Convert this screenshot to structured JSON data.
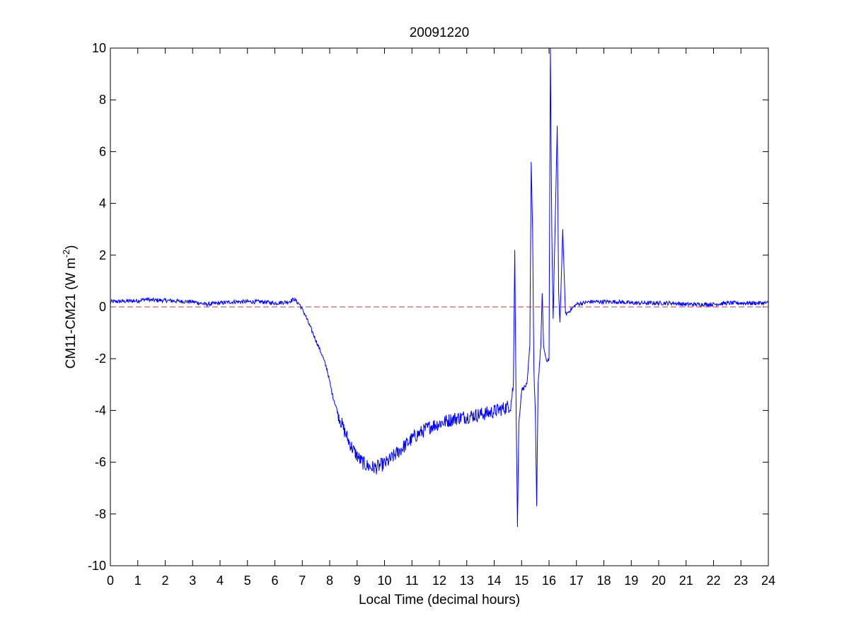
{
  "chart_data": {
    "type": "line",
    "title": "20091220",
    "xlabel": "Local Time (decimal hours)",
    "ylabel": {
      "text": "CM11-CM21 (W m",
      "superscript": "-2",
      "close": ")"
    },
    "xlim": [
      0,
      24
    ],
    "ylim": [
      -10,
      10
    ],
    "xticks": [
      "0",
      "1",
      "2",
      "3",
      "4",
      "5",
      "6",
      "7",
      "8",
      "9",
      "10",
      "11",
      "12",
      "13",
      "14",
      "15",
      "16",
      "17",
      "18",
      "19",
      "20",
      "21",
      "22",
      "23",
      "24"
    ],
    "yticks": [
      "-10",
      "-8",
      "-6",
      "-4",
      "-2",
      "0",
      "2",
      "4",
      "6",
      "8",
      "10"
    ],
    "grid": false,
    "legend": "none",
    "reference_line": {
      "y": 0,
      "style": "dashed",
      "color": "#C0393B"
    },
    "series": [
      {
        "color": "#0000FF",
        "points": [
          [
            0.0,
            0.2
          ],
          [
            0.5,
            0.22
          ],
          [
            1.0,
            0.24
          ],
          [
            1.3,
            0.3
          ],
          [
            1.5,
            0.26
          ],
          [
            2.0,
            0.25
          ],
          [
            2.5,
            0.22
          ],
          [
            3.0,
            0.2
          ],
          [
            3.5,
            0.1
          ],
          [
            4.0,
            0.15
          ],
          [
            4.5,
            0.2
          ],
          [
            5.0,
            0.2
          ],
          [
            5.5,
            0.2
          ],
          [
            6.0,
            0.15
          ],
          [
            6.5,
            0.2
          ],
          [
            6.7,
            0.3
          ],
          [
            6.9,
            0.1
          ],
          [
            7.1,
            -0.3
          ],
          [
            7.3,
            -0.8
          ],
          [
            7.5,
            -1.3
          ],
          [
            7.7,
            -1.8
          ],
          [
            7.9,
            -2.4
          ],
          [
            8.1,
            -3.4
          ],
          [
            8.3,
            -4.1
          ],
          [
            8.5,
            -4.7
          ],
          [
            8.7,
            -5.2
          ],
          [
            8.9,
            -5.6
          ],
          [
            9.1,
            -5.9
          ],
          [
            9.3,
            -6.1
          ],
          [
            9.5,
            -6.2
          ],
          [
            9.7,
            -6.2
          ],
          [
            9.9,
            -6.1
          ],
          [
            10.1,
            -6.0
          ],
          [
            10.3,
            -5.8
          ],
          [
            10.5,
            -5.6
          ],
          [
            10.8,
            -5.3
          ],
          [
            11.1,
            -5.0
          ],
          [
            11.4,
            -4.8
          ],
          [
            11.7,
            -4.6
          ],
          [
            12.0,
            -4.5
          ],
          [
            12.3,
            -4.4
          ],
          [
            12.6,
            -4.3
          ],
          [
            12.9,
            -4.25
          ],
          [
            13.2,
            -4.2
          ],
          [
            13.5,
            -4.15
          ],
          [
            13.8,
            -4.1
          ],
          [
            14.1,
            -4.0
          ],
          [
            14.4,
            -3.9
          ],
          [
            14.6,
            -3.8
          ],
          [
            14.7,
            -3.0
          ],
          [
            14.75,
            2.2
          ],
          [
            14.8,
            -4.0
          ],
          [
            14.85,
            -8.5
          ],
          [
            14.9,
            -4.5
          ],
          [
            15.0,
            -3.2
          ],
          [
            15.2,
            -3.0
          ],
          [
            15.3,
            -1.5
          ],
          [
            15.35,
            5.6
          ],
          [
            15.4,
            3.0
          ],
          [
            15.45,
            -2.5
          ],
          [
            15.5,
            -4.0
          ],
          [
            15.55,
            -7.7
          ],
          [
            15.6,
            -3.0
          ],
          [
            15.7,
            -1.5
          ],
          [
            15.75,
            0.5
          ],
          [
            15.8,
            -1.5
          ],
          [
            15.9,
            -2.1
          ],
          [
            16.0,
            -2.0
          ],
          [
            16.05,
            10.0
          ],
          [
            16.1,
            3.0
          ],
          [
            16.15,
            -0.5
          ],
          [
            16.2,
            2.0
          ],
          [
            16.3,
            7.0
          ],
          [
            16.35,
            0.5
          ],
          [
            16.4,
            -0.6
          ],
          [
            16.5,
            3.0
          ],
          [
            16.6,
            -0.3
          ],
          [
            16.8,
            -0.1
          ],
          [
            17.0,
            0.1
          ],
          [
            17.5,
            0.2
          ],
          [
            18.0,
            0.2
          ],
          [
            18.5,
            0.2
          ],
          [
            19.0,
            0.15
          ],
          [
            19.5,
            0.15
          ],
          [
            20.0,
            0.15
          ],
          [
            20.5,
            0.15
          ],
          [
            21.0,
            0.1
          ],
          [
            21.5,
            0.1
          ],
          [
            22.0,
            0.1
          ],
          [
            22.5,
            0.15
          ],
          [
            23.0,
            0.15
          ],
          [
            23.5,
            0.15
          ],
          [
            24.0,
            0.15
          ]
        ]
      }
    ]
  }
}
